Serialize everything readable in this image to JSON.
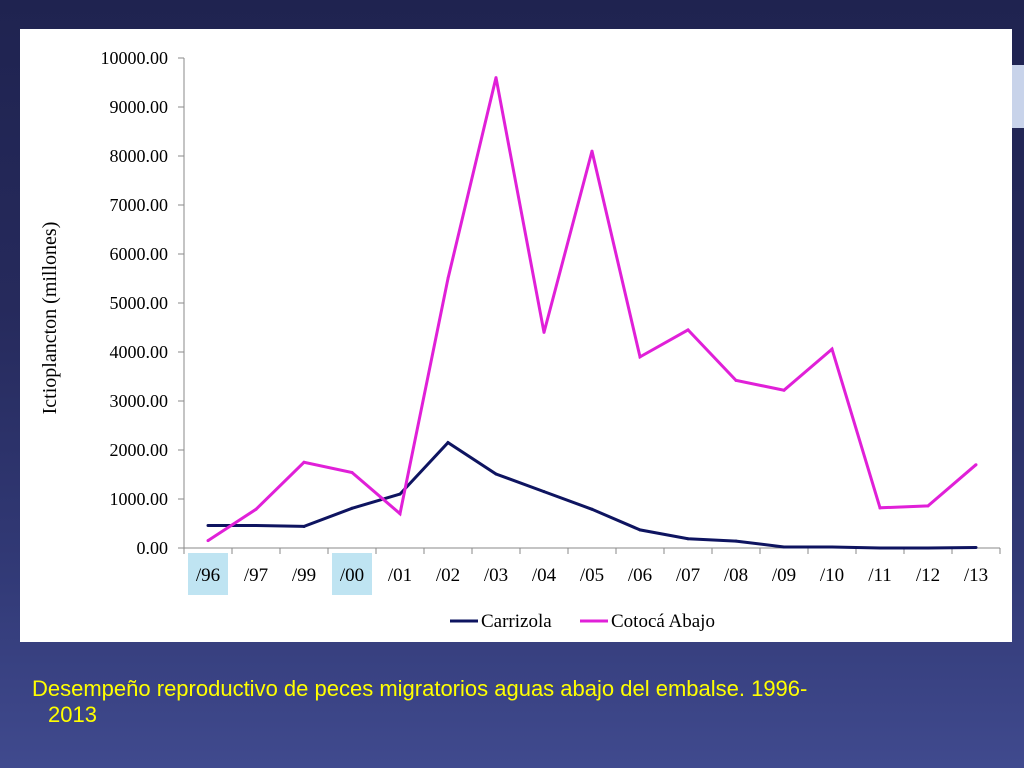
{
  "caption": {
    "line1": "Desempeño reproductivo de peces migratorios aguas abajo del embalse. 1996-",
    "line2": "2013"
  },
  "colors": {
    "background": "#262a5c",
    "caption_text": "#ffff00",
    "highlight": "#bfe4f2",
    "carrizola": "#0e1460",
    "cotoca": "#e020d8"
  },
  "chart_data": {
    "type": "line",
    "title": "",
    "xlabel": "",
    "ylabel": "Ictioplancton (millones)",
    "categories": [
      "/96",
      "/97",
      "/99",
      "/00",
      "/01",
      "/02",
      "/03",
      "/04",
      "/05",
      "/06",
      "/07",
      "/08",
      "/09",
      "/10",
      "/11",
      "/12",
      "/13"
    ],
    "highlighted_categories": [
      "/96",
      "/00"
    ],
    "ylim": [
      0,
      10000
    ],
    "yticks": [
      "0.00",
      "1000.00",
      "2000.00",
      "3000.00",
      "4000.00",
      "5000.00",
      "6000.00",
      "7000.00",
      "8000.00",
      "9000.00",
      "10000.00"
    ],
    "grid": false,
    "legend_position": "bottom",
    "series": [
      {
        "name": "Carrizola",
        "color": "#0e1460",
        "values": [
          460,
          460,
          440,
          810,
          1100,
          2150,
          1510,
          1150,
          790,
          370,
          190,
          140,
          20,
          20,
          0,
          0,
          10
        ]
      },
      {
        "name": "Cotocá Abajo",
        "color": "#e020d8",
        "values": [
          150,
          790,
          1750,
          1540,
          700,
          5500,
          9600,
          4400,
          8100,
          3900,
          4450,
          3420,
          3220,
          4060,
          820,
          860,
          1700
        ]
      }
    ]
  }
}
